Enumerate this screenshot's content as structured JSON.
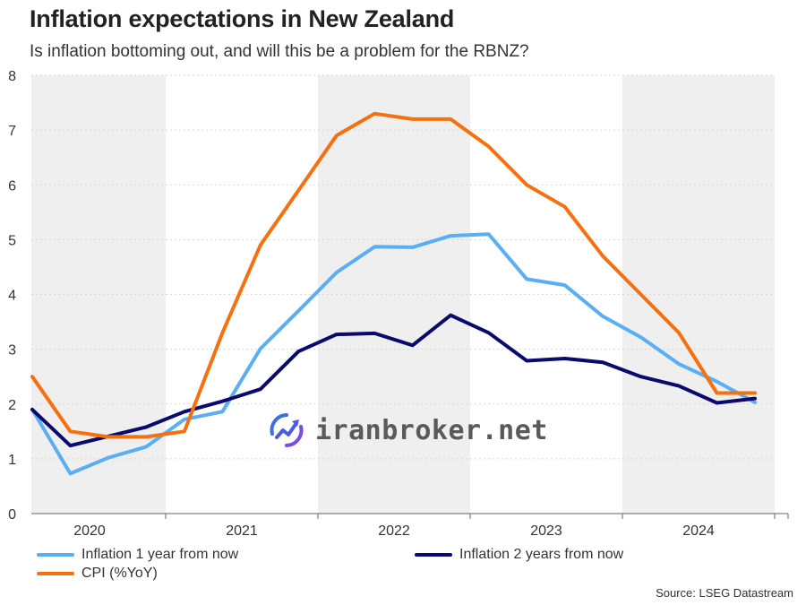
{
  "header": {
    "title": "Inflation expectations in New Zealand",
    "subtitle": "Is inflation bottoming out, and will this be a problem for the RBNZ?"
  },
  "source": "Source: LSEG Datastream",
  "watermark": {
    "text": "iranbroker.net",
    "icon": "chart-refresh-icon"
  },
  "legend": [
    {
      "label": "Inflation 1 year from now",
      "color": "#5aaef3"
    },
    {
      "label": "Inflation 2 years from now",
      "color": "#0a0a6e"
    },
    {
      "label": "CPI (%YoY)",
      "color": "#f5700f"
    }
  ],
  "chart_data": {
    "type": "line",
    "xlabel": "",
    "ylabel": "",
    "ylim": [
      0,
      8
    ],
    "yticks": [
      "0",
      "1",
      "2",
      "3",
      "4",
      "5",
      "6",
      "7",
      "8"
    ],
    "year_labels": [
      "2020",
      "2021",
      "2022",
      "2023",
      "2024"
    ],
    "shaded_years": [
      "2020",
      "2022",
      "2024"
    ],
    "grid": true,
    "x": [
      "2019 Q4",
      "2020 Q1",
      "2020 Q2",
      "2020 Q3",
      "2020 Q4",
      "2021 Q1",
      "2021 Q2",
      "2021 Q3",
      "2021 Q4",
      "2022 Q1",
      "2022 Q2",
      "2022 Q3",
      "2022 Q4",
      "2023 Q1",
      "2023 Q2",
      "2023 Q3",
      "2023 Q4",
      "2024 Q1",
      "2024 Q2",
      "2024 Q3"
    ],
    "series": [
      {
        "name": "Inflation 1 year from now",
        "color": "#5aaef3",
        "values": [
          1.9,
          0.73,
          1.02,
          1.22,
          1.72,
          1.86,
          3.01,
          3.7,
          4.4,
          4.87,
          4.86,
          5.07,
          5.1,
          4.28,
          4.17,
          3.6,
          3.22,
          2.73,
          2.41,
          2.03
        ]
      },
      {
        "name": "Inflation 2 years from now",
        "color": "#0a0a6e",
        "values": [
          1.9,
          1.24,
          1.41,
          1.58,
          1.86,
          2.05,
          2.27,
          2.96,
          3.27,
          3.29,
          3.07,
          3.62,
          3.3,
          2.79,
          2.83,
          2.76,
          2.5,
          2.33,
          2.02,
          2.1
        ]
      },
      {
        "name": "CPI (%YoY)",
        "color": "#f5700f",
        "values": [
          2.5,
          1.5,
          1.4,
          1.4,
          1.5,
          3.3,
          4.9,
          5.9,
          6.9,
          7.3,
          7.2,
          7.2,
          6.7,
          6.0,
          5.6,
          4.7,
          4.0,
          3.3,
          2.2,
          2.2
        ]
      }
    ],
    "legend_position": "bottom"
  }
}
